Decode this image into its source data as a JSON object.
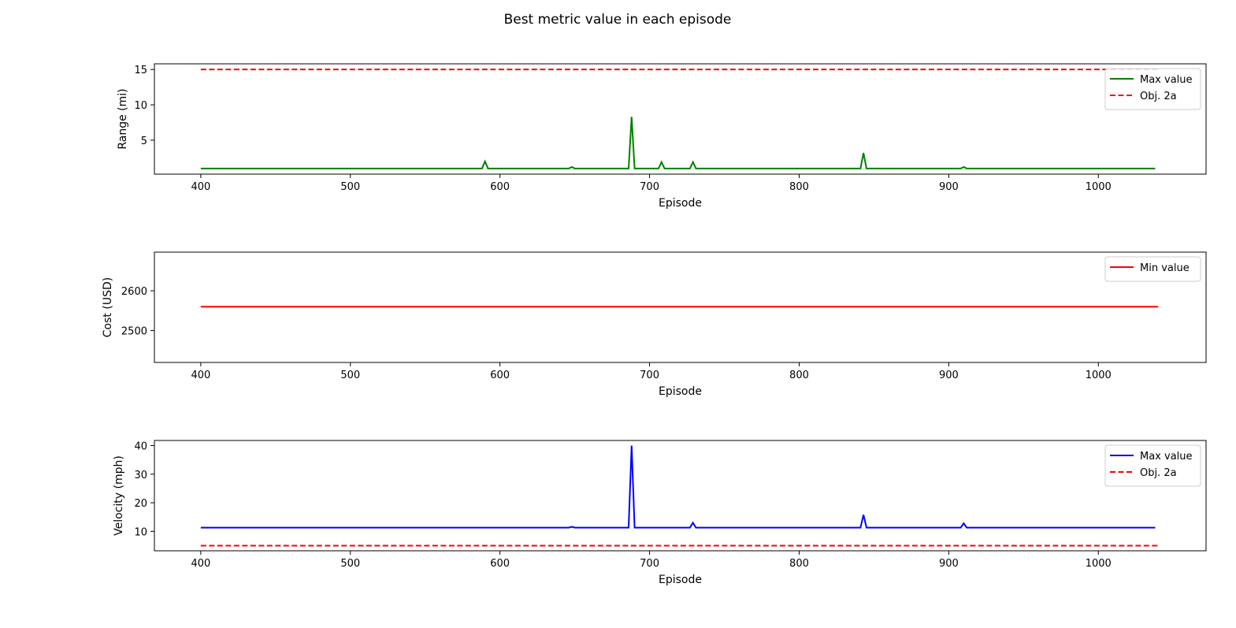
{
  "figure": {
    "title": "Best metric value in each episode"
  },
  "chart_data": [
    {
      "type": "line",
      "xlabel": "Episode",
      "ylabel": "Range (mi)",
      "xlim": [
        369,
        1072
      ],
      "ylim": [
        0.2,
        15.8
      ],
      "xticks": [
        400,
        500,
        600,
        700,
        800,
        900,
        1000
      ],
      "yticks": [
        5,
        10,
        15
      ],
      "legend_position": "upper right",
      "series": [
        {
          "name": "Max value",
          "color": "#008000",
          "style": "solid",
          "points": [
            [
              400,
              1
            ],
            [
              588,
              1
            ],
            [
              590,
              2
            ],
            [
              592,
              1
            ],
            [
              646,
              1
            ],
            [
              648,
              1.2
            ],
            [
              650,
              1
            ],
            [
              686,
              1
            ],
            [
              688,
              8.3
            ],
            [
              690,
              1
            ],
            [
              706,
              1
            ],
            [
              708,
              1.9
            ],
            [
              710,
              1
            ],
            [
              727,
              1
            ],
            [
              729,
              1.9
            ],
            [
              731,
              1
            ],
            [
              841,
              1
            ],
            [
              843,
              3.2
            ],
            [
              845,
              1
            ],
            [
              908,
              1
            ],
            [
              910,
              1.2
            ],
            [
              912,
              1
            ],
            [
              1038,
              1
            ]
          ]
        },
        {
          "name": "Obj. 2a",
          "color": "#ff0000",
          "style": "dashed",
          "points": [
            [
              400,
              15
            ],
            [
              1040,
              15
            ]
          ]
        }
      ]
    },
    {
      "type": "line",
      "xlabel": "Episode",
      "ylabel": "Cost (USD)",
      "xlim": [
        369,
        1072
      ],
      "ylim": [
        2420,
        2697
      ],
      "xticks": [
        400,
        500,
        600,
        700,
        800,
        900,
        1000
      ],
      "yticks": [
        2500,
        2600
      ],
      "legend_position": "upper right",
      "series": [
        {
          "name": "Min value",
          "color": "#ff0000",
          "style": "solid",
          "points": [
            [
              400,
              2560
            ],
            [
              1040,
              2560
            ]
          ]
        }
      ]
    },
    {
      "type": "line",
      "xlabel": "Episode",
      "ylabel": "Velocity (mph)",
      "xlim": [
        369,
        1072
      ],
      "ylim": [
        3.2,
        41.8
      ],
      "xticks": [
        400,
        500,
        600,
        700,
        800,
        900,
        1000
      ],
      "yticks": [
        10,
        20,
        30,
        40
      ],
      "legend_position": "upper right",
      "series": [
        {
          "name": "Max value",
          "color": "#0000ff",
          "style": "solid",
          "points": [
            [
              400,
              11.3
            ],
            [
              646,
              11.3
            ],
            [
              648,
              11.6
            ],
            [
              650,
              11.3
            ],
            [
              686,
              11.3
            ],
            [
              688,
              40
            ],
            [
              690,
              11.3
            ],
            [
              727,
              11.3
            ],
            [
              729,
              13
            ],
            [
              731,
              11.3
            ],
            [
              841,
              11.3
            ],
            [
              843,
              15.8
            ],
            [
              845,
              11.3
            ],
            [
              908,
              11.3
            ],
            [
              910,
              12.8
            ],
            [
              912,
              11.3
            ],
            [
              1038,
              11.3
            ]
          ]
        },
        {
          "name": "Obj. 2a",
          "color": "#ff0000",
          "style": "dashed",
          "points": [
            [
              400,
              5
            ],
            [
              1040,
              5
            ]
          ]
        }
      ]
    }
  ]
}
